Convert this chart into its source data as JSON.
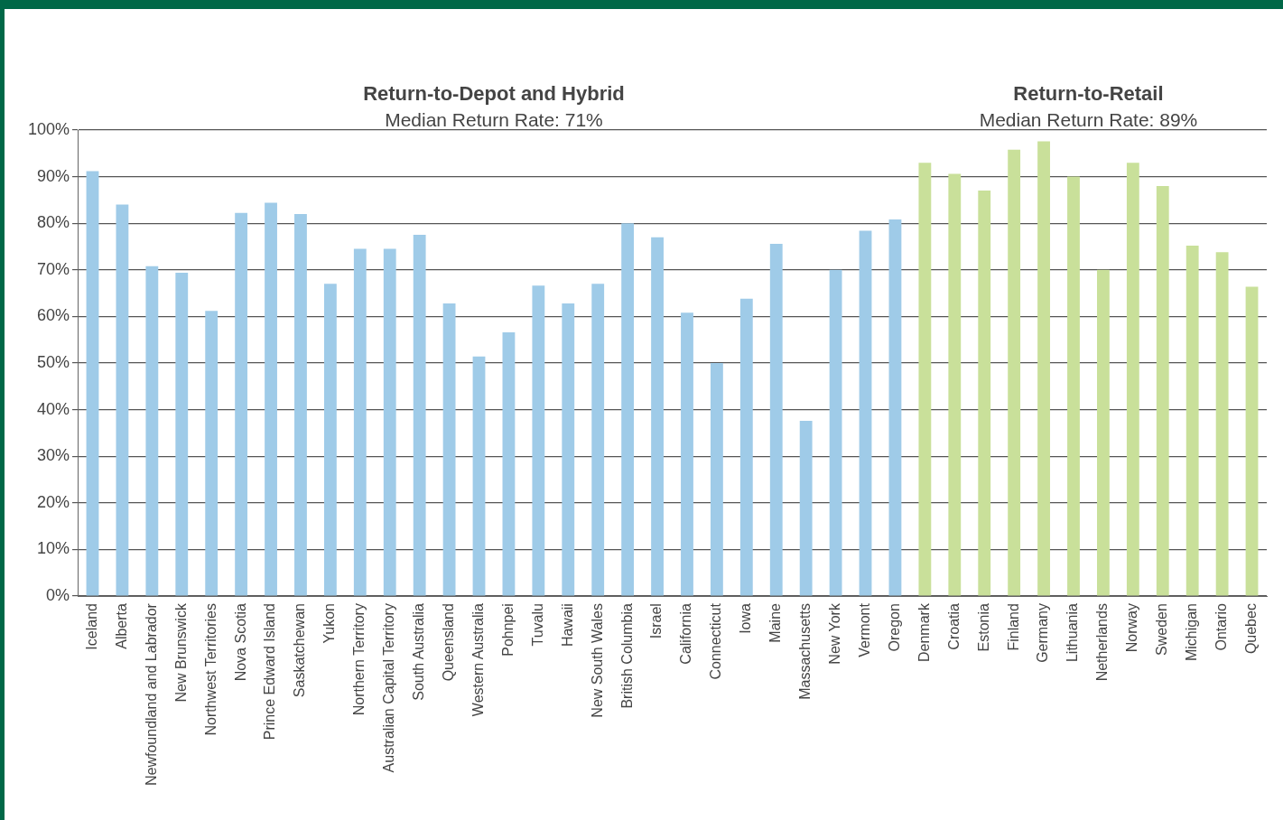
{
  "chart_data": {
    "type": "bar",
    "annotations": [
      "Return-to-Depot and Hybrid",
      "Median Return Rate: 71%",
      "Return-to-Retail",
      "Median Return Rate: 89%"
    ],
    "categories": [
      "Iceland",
      "Alberta",
      "Newfoundland and Labrador",
      "New Brunswick",
      "Northwest Territories",
      "Nova Scotia",
      "Prince Edward Island",
      "Saskatchewan",
      "Yukon",
      "Northern Territory",
      "Australian Capital Territory",
      "South Australia",
      "Queensland",
      "Western Australia",
      "Pohnpei",
      "Tuvalu",
      "Hawaii",
      "New South Wales",
      "British Columbia",
      "Israel",
      "California",
      "Connecticut",
      "Iowa",
      "Maine",
      "Massachusetts",
      "New York",
      "Vermont",
      "Oregon",
      "Denmark",
      "Croatia",
      "Estonia",
      "Finland",
      "Germany",
      "Lithuania",
      "Netherlands",
      "Norway",
      "Sweden",
      "Michigan",
      "Ontario",
      "Quebec"
    ],
    "values": [
      91.2,
      84,
      70.8,
      69.4,
      61.2,
      82.2,
      84.4,
      82,
      67,
      74.5,
      74.5,
      77.5,
      62.8,
      51.4,
      56.6,
      66.6,
      62.8,
      67,
      80,
      77,
      60.8,
      50,
      63.8,
      75.6,
      37.6,
      70,
      78.4,
      80.8,
      93,
      90.6,
      87,
      95.8,
      97.6,
      90,
      70,
      93,
      88,
      75.2,
      73.8,
      66.4
    ],
    "colors": [
      "#9fcbe8",
      "#9fcbe8",
      "#9fcbe8",
      "#9fcbe8",
      "#9fcbe8",
      "#9fcbe8",
      "#9fcbe8",
      "#9fcbe8",
      "#9fcbe8",
      "#9fcbe8",
      "#9fcbe8",
      "#9fcbe8",
      "#9fcbe8",
      "#9fcbe8",
      "#9fcbe8",
      "#9fcbe8",
      "#9fcbe8",
      "#9fcbe8",
      "#9fcbe8",
      "#9fcbe8",
      "#9fcbe8",
      "#9fcbe8",
      "#9fcbe8",
      "#9fcbe8",
      "#9fcbe8",
      "#9fcbe8",
      "#9fcbe8",
      "#9fcbe8",
      "#c9e09a",
      "#c9e09a",
      "#c9e09a",
      "#c9e09a",
      "#c9e09a",
      "#c9e09a",
      "#c9e09a",
      "#c9e09a",
      "#c9e09a",
      "#c9e09a",
      "#c9e09a",
      "#c9e09a"
    ],
    "ylim": [
      0,
      100
    ],
    "yticks": [
      {
        "value": 0,
        "label": "0%"
      },
      {
        "value": 10,
        "label": "10%"
      },
      {
        "value": 20,
        "label": "20%"
      },
      {
        "value": 30,
        "label": "30%"
      },
      {
        "value": 40,
        "label": "40%"
      },
      {
        "value": 50,
        "label": "50%"
      },
      {
        "value": 60,
        "label": "60%"
      },
      {
        "value": 70,
        "label": "70%"
      },
      {
        "value": 80,
        "label": "80%"
      },
      {
        "value": 90,
        "label": "90%"
      },
      {
        "value": 100,
        "label": "100%"
      }
    ],
    "grid": "y",
    "legend": false
  }
}
